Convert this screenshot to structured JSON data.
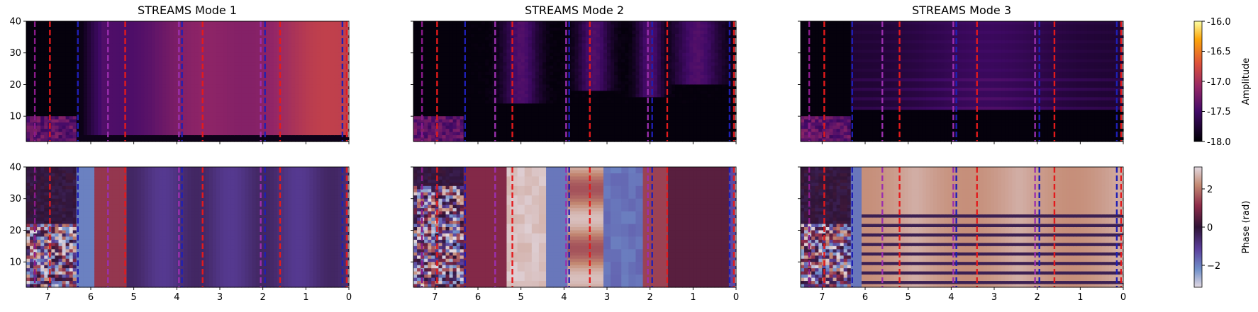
{
  "chart_data": {
    "type": "heatmap",
    "panels": [
      {
        "row": "amplitude",
        "title": "STREAMS Mode 1",
        "pattern": "mode1_amp"
      },
      {
        "row": "amplitude",
        "title": "STREAMS Mode 2",
        "pattern": "mode2_amp"
      },
      {
        "row": "amplitude",
        "title": "STREAMS Mode 3",
        "pattern": "mode3_amp"
      },
      {
        "row": "phase",
        "title": "",
        "pattern": "mode1_phase"
      },
      {
        "row": "phase",
        "title": "",
        "pattern": "mode2_phase"
      },
      {
        "row": "phase",
        "title": "",
        "pattern": "mode3_phase"
      }
    ],
    "xlim": [
      7.5,
      0
    ],
    "ylim": [
      2,
      40
    ],
    "x_ticks": [
      7,
      6,
      5,
      4,
      3,
      2,
      1,
      0
    ],
    "y_ticks": [
      10,
      20,
      30,
      40
    ],
    "grid": false,
    "vlines": [
      {
        "x": 7.3,
        "color": "#8b1a8b"
      },
      {
        "x": 6.95,
        "color": "#e31a1c"
      },
      {
        "x": 6.3,
        "color": "#1f1fb4"
      },
      {
        "x": 5.6,
        "color": "#9b2fae"
      },
      {
        "x": 5.2,
        "color": "#e31a1c"
      },
      {
        "x": 3.95,
        "color": "#9b2fae"
      },
      {
        "x": 3.88,
        "color": "#1f1fb4"
      },
      {
        "x": 3.4,
        "color": "#e31a1c"
      },
      {
        "x": 2.05,
        "color": "#9b2fae"
      },
      {
        "x": 1.95,
        "color": "#1f1fb4"
      },
      {
        "x": 1.6,
        "color": "#e31a1c"
      },
      {
        "x": 0.15,
        "color": "#1f1fb4"
      },
      {
        "x": 0.05,
        "color": "#e31a1c"
      },
      {
        "x": 0.0,
        "color": "#ffffff"
      }
    ],
    "colorbars": [
      {
        "label": "Amplitude",
        "colormap": "inferno-like",
        "vmin": -18.0,
        "vmax": -16.0,
        "ticks": [
          "-16.0",
          "-16.5",
          "-17.0",
          "-17.5",
          "-18.0"
        ]
      },
      {
        "label": "Phase (rad)",
        "colormap": "twilight",
        "vmin": -3.14,
        "vmax": 3.14,
        "ticks": [
          "2",
          "0",
          "−2"
        ]
      }
    ]
  }
}
